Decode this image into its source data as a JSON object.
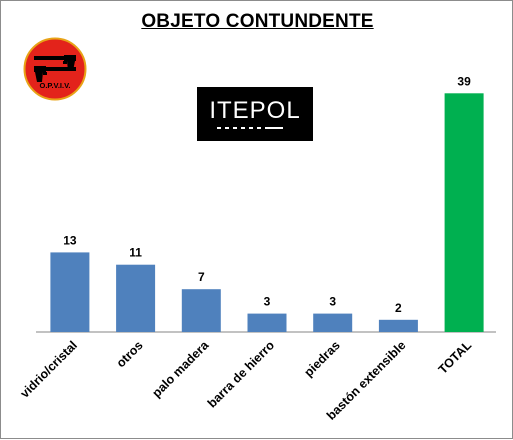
{
  "logos": {
    "opviv_text": "O.P.V.I.V.",
    "itepol_text": "ITEPOL"
  },
  "colors": {
    "bar": "#4f81bd",
    "total_bar": "#00b050",
    "logo_red": "#e3231b",
    "logo_border": "#e8a317"
  },
  "chart_data": {
    "type": "bar",
    "title": "OBJETO CONTUNDENTE",
    "xlabel": "",
    "ylabel": "",
    "categories": [
      "vidrio/cristal",
      "otros",
      "palo madera",
      "barra de hierro",
      "piedras",
      "bastón extensible",
      "TOTAL"
    ],
    "values": [
      13,
      11,
      7,
      3,
      3,
      2,
      39
    ],
    "highlight": {
      "category": "TOTAL",
      "color": "#00b050"
    },
    "ylim": [
      0,
      40
    ],
    "grid": false,
    "legend": "none",
    "data_labels": true
  }
}
